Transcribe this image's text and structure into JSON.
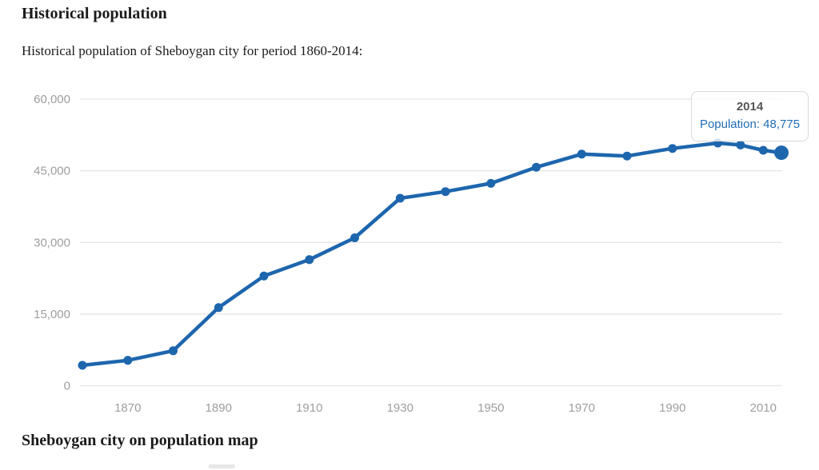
{
  "page": {
    "title": "Historical population",
    "subtitle": "Historical population of Sheboygan city for period 1860-2014:",
    "map_heading": "Sheboygan city on population map"
  },
  "tooltip": {
    "year": "2014",
    "text": "Population: 48,775"
  },
  "colors": {
    "line_blue": "#1d66ae",
    "tooltip_value_blue": "#1e6cb5",
    "tooltip_year_gray": "#555555",
    "axis_label_gray": "#9e9e9e",
    "gridline_gray": "#e8e8e8"
  },
  "chart_data": {
    "type": "line",
    "title": "",
    "xlabel": "",
    "ylabel": "",
    "legend": "none",
    "grid": true,
    "xlim": [
      1860,
      2014
    ],
    "ylim": [
      0,
      60000
    ],
    "series": [
      {
        "name": "Population",
        "x": [
          1860,
          1870,
          1880,
          1890,
          1900,
          1910,
          1920,
          1930,
          1940,
          1950,
          1960,
          1970,
          1980,
          1990,
          2000,
          2005,
          2010,
          2014
        ],
        "values": [
          4262,
          5310,
          7314,
          16359,
          22962,
          26398,
          30955,
          39251,
          40638,
          42365,
          45747,
          48484,
          48085,
          49676,
          50792,
          50400,
          49288,
          48775
        ]
      }
    ],
    "highlighted_point": {
      "x": 2014,
      "value": 48775
    },
    "y_ticks": [
      {
        "value": 0,
        "label": "0"
      },
      {
        "value": 15000,
        "label": "15,000"
      },
      {
        "value": 30000,
        "label": "30,000"
      },
      {
        "value": 45000,
        "label": "45,000"
      },
      {
        "value": 60000,
        "label": "60,000"
      }
    ],
    "x_ticks": [
      {
        "value": 1870,
        "label": "1870"
      },
      {
        "value": 1890,
        "label": "1890"
      },
      {
        "value": 1910,
        "label": "1910"
      },
      {
        "value": 1930,
        "label": "1930"
      },
      {
        "value": 1950,
        "label": "1950"
      },
      {
        "value": 1970,
        "label": "1970"
      },
      {
        "value": 1990,
        "label": "1990"
      },
      {
        "value": 2010,
        "label": "2010"
      }
    ]
  }
}
